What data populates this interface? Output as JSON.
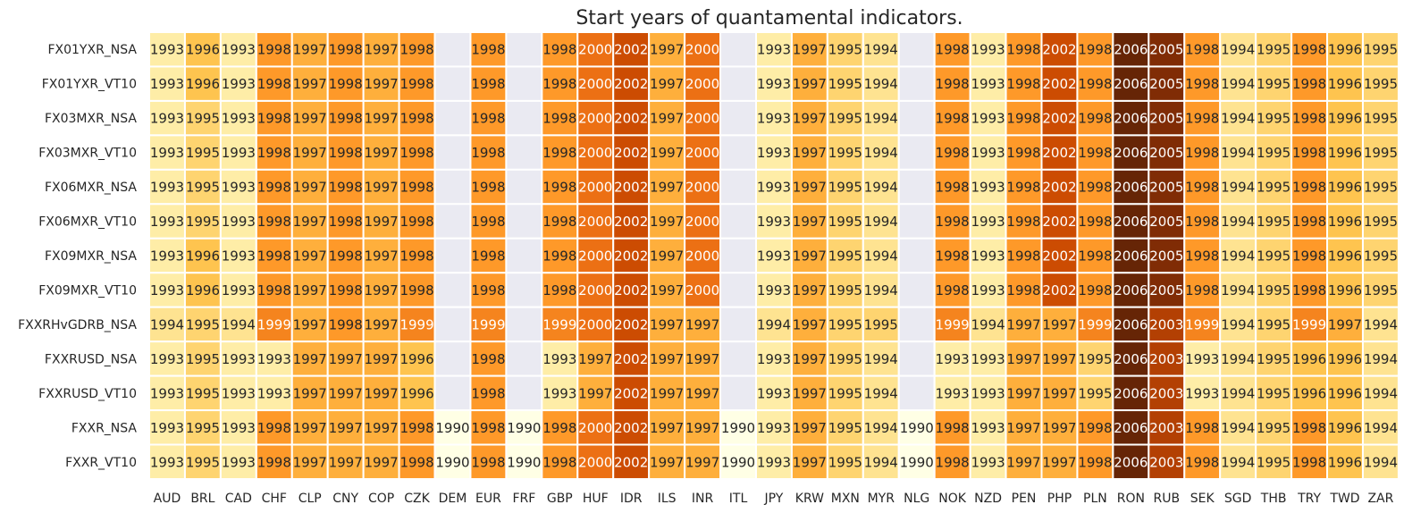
{
  "chart_data": {
    "type": "heatmap",
    "title": "Start years of quantamental indicators.",
    "xlabel": "",
    "ylabel": "",
    "x_categories": [
      "AUD",
      "BRL",
      "CAD",
      "CHF",
      "CLP",
      "CNY",
      "COP",
      "CZK",
      "DEM",
      "EUR",
      "FRF",
      "GBP",
      "HUF",
      "IDR",
      "ILS",
      "INR",
      "ITL",
      "JPY",
      "KRW",
      "MXN",
      "MYR",
      "NLG",
      "NOK",
      "NZD",
      "PEN",
      "PHP",
      "PLN",
      "RON",
      "RUB",
      "SEK",
      "SGD",
      "THB",
      "TRY",
      "TWD",
      "ZAR"
    ],
    "y_categories": [
      "FX01YXR_NSA",
      "FX01YXR_VT10",
      "FX03MXR_NSA",
      "FX03MXR_VT10",
      "FX06MXR_NSA",
      "FX06MXR_VT10",
      "FX09MXR_NSA",
      "FX09MXR_VT10",
      "FXXRHvGDRB_NSA",
      "FXXRUSD_NSA",
      "FXXRUSD_VT10",
      "FXXR_NSA",
      "FXXR_VT10"
    ],
    "values": [
      [
        1993,
        1996,
        1993,
        1998,
        1997,
        1998,
        1997,
        1998,
        null,
        1998,
        null,
        1998,
        2000,
        2002,
        1997,
        2000,
        null,
        1993,
        1997,
        1995,
        1994,
        null,
        1998,
        1993,
        1998,
        2002,
        1998,
        2006,
        2005,
        1998,
        1994,
        1995,
        1998,
        1996,
        1995
      ],
      [
        1993,
        1996,
        1993,
        1998,
        1997,
        1998,
        1997,
        1998,
        null,
        1998,
        null,
        1998,
        2000,
        2002,
        1997,
        2000,
        null,
        1993,
        1997,
        1995,
        1994,
        null,
        1998,
        1993,
        1998,
        2002,
        1998,
        2006,
        2005,
        1998,
        1994,
        1995,
        1998,
        1996,
        1995
      ],
      [
        1993,
        1995,
        1993,
        1998,
        1997,
        1998,
        1997,
        1998,
        null,
        1998,
        null,
        1998,
        2000,
        2002,
        1997,
        2000,
        null,
        1993,
        1997,
        1995,
        1994,
        null,
        1998,
        1993,
        1998,
        2002,
        1998,
        2006,
        2005,
        1998,
        1994,
        1995,
        1998,
        1996,
        1995
      ],
      [
        1993,
        1995,
        1993,
        1998,
        1997,
        1998,
        1997,
        1998,
        null,
        1998,
        null,
        1998,
        2000,
        2002,
        1997,
        2000,
        null,
        1993,
        1997,
        1995,
        1994,
        null,
        1998,
        1993,
        1998,
        2002,
        1998,
        2006,
        2005,
        1998,
        1994,
        1995,
        1998,
        1996,
        1995
      ],
      [
        1993,
        1995,
        1993,
        1998,
        1997,
        1998,
        1997,
        1998,
        null,
        1998,
        null,
        1998,
        2000,
        2002,
        1997,
        2000,
        null,
        1993,
        1997,
        1995,
        1994,
        null,
        1998,
        1993,
        1998,
        2002,
        1998,
        2006,
        2005,
        1998,
        1994,
        1995,
        1998,
        1996,
        1995
      ],
      [
        1993,
        1995,
        1993,
        1998,
        1997,
        1998,
        1997,
        1998,
        null,
        1998,
        null,
        1998,
        2000,
        2002,
        1997,
        2000,
        null,
        1993,
        1997,
        1995,
        1994,
        null,
        1998,
        1993,
        1998,
        2002,
        1998,
        2006,
        2005,
        1998,
        1994,
        1995,
        1998,
        1996,
        1995
      ],
      [
        1993,
        1996,
        1993,
        1998,
        1997,
        1998,
        1997,
        1998,
        null,
        1998,
        null,
        1998,
        2000,
        2002,
        1997,
        2000,
        null,
        1993,
        1997,
        1995,
        1994,
        null,
        1998,
        1993,
        1998,
        2002,
        1998,
        2006,
        2005,
        1998,
        1994,
        1995,
        1998,
        1996,
        1995
      ],
      [
        1993,
        1996,
        1993,
        1998,
        1997,
        1998,
        1997,
        1998,
        null,
        1998,
        null,
        1998,
        2000,
        2002,
        1997,
        2000,
        null,
        1993,
        1997,
        1995,
        1994,
        null,
        1998,
        1993,
        1998,
        2002,
        1998,
        2006,
        2005,
        1998,
        1994,
        1995,
        1998,
        1996,
        1995
      ],
      [
        1994,
        1995,
        1994,
        1999,
        1997,
        1998,
        1997,
        1999,
        null,
        1999,
        null,
        1999,
        2000,
        2002,
        1997,
        1997,
        null,
        1994,
        1997,
        1995,
        1995,
        null,
        1999,
        1994,
        1997,
        1997,
        1999,
        2006,
        2003,
        1999,
        1994,
        1995,
        1999,
        1997,
        1994
      ],
      [
        1993,
        1995,
        1993,
        1993,
        1997,
        1997,
        1997,
        1996,
        null,
        1998,
        null,
        1993,
        1997,
        2002,
        1997,
        1997,
        null,
        1993,
        1997,
        1995,
        1994,
        null,
        1993,
        1993,
        1997,
        1997,
        1995,
        2006,
        2003,
        1993,
        1994,
        1995,
        1996,
        1996,
        1994
      ],
      [
        1993,
        1995,
        1993,
        1993,
        1997,
        1997,
        1997,
        1996,
        null,
        1998,
        null,
        1993,
        1997,
        2002,
        1997,
        1997,
        null,
        1993,
        1997,
        1995,
        1994,
        null,
        1993,
        1993,
        1997,
        1997,
        1995,
        2006,
        2003,
        1993,
        1994,
        1995,
        1996,
        1996,
        1994
      ],
      [
        1993,
        1995,
        1993,
        1998,
        1997,
        1997,
        1997,
        1998,
        1990,
        1998,
        1990,
        1998,
        2000,
        2002,
        1997,
        1997,
        1990,
        1993,
        1997,
        1995,
        1994,
        1990,
        1998,
        1993,
        1997,
        1997,
        1998,
        2006,
        2003,
        1998,
        1994,
        1995,
        1998,
        1996,
        1994
      ],
      [
        1993,
        1995,
        1993,
        1998,
        1997,
        1997,
        1997,
        1998,
        1990,
        1998,
        1990,
        1998,
        2000,
        2002,
        1997,
        1997,
        1990,
        1993,
        1997,
        1995,
        1994,
        1990,
        1998,
        1993,
        1997,
        1997,
        1998,
        2006,
        2003,
        1998,
        1994,
        1995,
        1998,
        1996,
        1994
      ]
    ],
    "value_range": [
      1990,
      2006
    ],
    "colormap": "YlOrBr",
    "colorbar": false,
    "missing_color": "#eaeaf2",
    "grid_color": "#ffffff"
  }
}
